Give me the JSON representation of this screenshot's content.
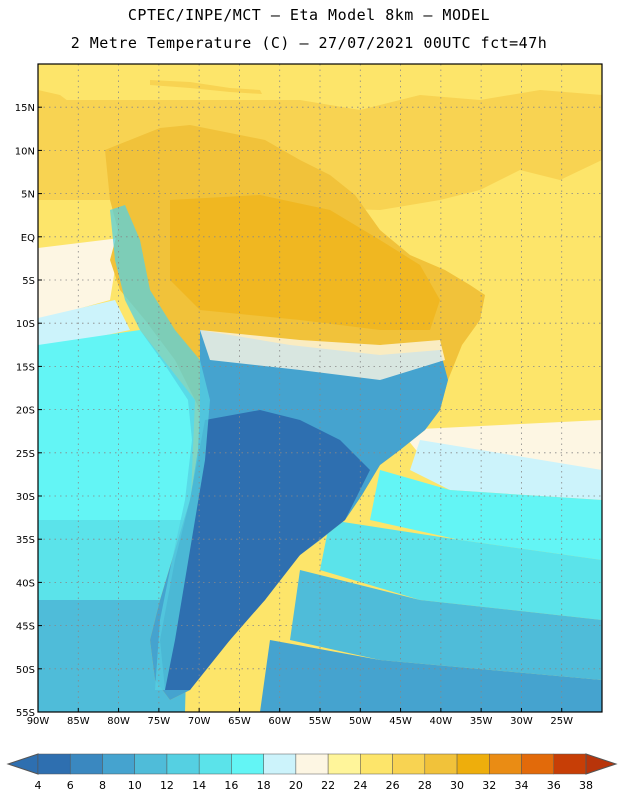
{
  "header": {
    "line1": "CPTEC/INPE/MCT –  Eta Model 8km – MODEL",
    "line2": "2 Metre Temperature (C) – 27/07/2021 00UTC fct=47h"
  },
  "map": {
    "lon_range": [
      -90,
      -20
    ],
    "lat_range": [
      -55,
      20
    ],
    "lat_labels": [
      "15N",
      "10N",
      "5N",
      "EQ",
      "5S",
      "10S",
      "15S",
      "20S",
      "25S",
      "30S",
      "35S",
      "40S",
      "45S",
      "50S",
      "55S"
    ],
    "lat_values": [
      15,
      10,
      5,
      0,
      -5,
      -10,
      -15,
      -20,
      -25,
      -30,
      -35,
      -40,
      -45,
      -50,
      -55
    ],
    "lon_labels": [
      "90W",
      "85W",
      "80W",
      "75W",
      "70W",
      "65W",
      "60W",
      "55W",
      "50W",
      "45W",
      "40W",
      "35W",
      "30W",
      "25W"
    ],
    "lon_values": [
      -90,
      -85,
      -80,
      -75,
      -70,
      -65,
      -60,
      -55,
      -50,
      -45,
      -40,
      -35,
      -30,
      -25
    ],
    "gridlines": true
  },
  "colorbar": {
    "labels": [
      "4",
      "6",
      "8",
      "10",
      "12",
      "14",
      "16",
      "18",
      "20",
      "22",
      "24",
      "26",
      "28",
      "30",
      "32",
      "34",
      "36",
      "38"
    ],
    "colors": [
      "#2e6fb0",
      "#3a88c0",
      "#45a3cf",
      "#4fbcd9",
      "#55d0e2",
      "#5be3ea",
      "#63f5f5",
      "#ccf3fb",
      "#fdf6e3",
      "#fff59a",
      "#fde56a",
      "#f8d352",
      "#f1c23a",
      "#eeae0c",
      "#ea8c14",
      "#e26a0a",
      "#c73e06"
    ],
    "under_color": "#2e6fb0",
    "over_color": "#b8340a"
  }
}
